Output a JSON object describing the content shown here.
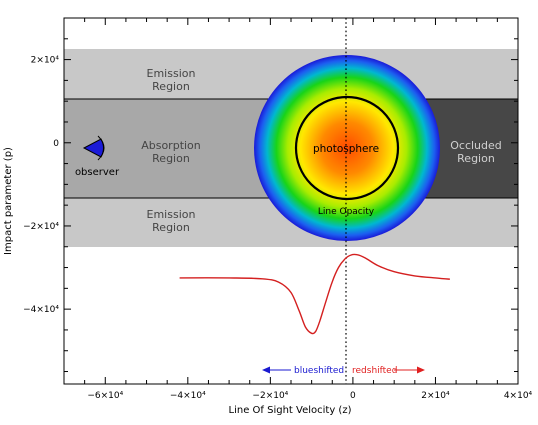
{
  "axes": {
    "xlabel": "Line Of Sight Velocity (z)",
    "ylabel": "Impact parameter (p)",
    "xlim": [
      -70000,
      40000
    ],
    "ylim": [
      -58000,
      30000
    ],
    "xticks": [
      {
        "value": -60000,
        "label": "−6×10⁴"
      },
      {
        "value": -40000,
        "label": "−4×10⁴"
      },
      {
        "value": -20000,
        "label": "−2×10⁴"
      },
      {
        "value": 0,
        "label": "0"
      },
      {
        "value": 20000,
        "label": "2×10⁴"
      },
      {
        "value": 40000,
        "label": "4×10⁴"
      }
    ],
    "yticks": [
      {
        "value": 20000,
        "label": "2×10⁴"
      },
      {
        "value": 0,
        "label": "0"
      },
      {
        "value": -20000,
        "label": "−2×10⁴"
      },
      {
        "value": -40000,
        "label": "−4×10⁴"
      }
    ]
  },
  "regions": {
    "emission_top": {
      "label_line1": "Emission",
      "label_line2": "Region",
      "p_range": [
        11500,
        23000
      ],
      "color": "#c8c8c8"
    },
    "absorption": {
      "label_line1": "Absorption",
      "label_line2": "Region",
      "p_range": [
        -11500,
        11500
      ],
      "color": "#a8a8a8"
    },
    "emission_bottom": {
      "label_line1": "Emission",
      "label_line2": "Region",
      "p_range": [
        -23000,
        -11500
      ],
      "color": "#c8c8c8"
    },
    "occluded": {
      "label_line1": "Occluded",
      "label_line2": "Region",
      "color": "#474747"
    }
  },
  "star": {
    "photosphere_label": "photosphere",
    "line_opacity_label": "Line Opacity",
    "outer_radius": 21000,
    "photosphere_radius": 11500
  },
  "observer": {
    "label": "observer",
    "color": "#1b1bd8"
  },
  "direction": {
    "blueshift_label": "blueshifted",
    "redshift_label": "redshifted",
    "blue_color": "#1a1ad0",
    "red_color": "#e02020"
  },
  "profile": {
    "color": "#d42020",
    "z": [
      -42000,
      -30000,
      -22000,
      -18000,
      -15000,
      -13000,
      -11500,
      -10000,
      -9000,
      -8000,
      -6500,
      -5000,
      -3500,
      -2000,
      -500,
      1000,
      3000,
      6000,
      10000,
      15000,
      20000,
      23500
    ],
    "y": [
      -32500,
      -32500,
      -32700,
      -33500,
      -36000,
      -40500,
      -44300,
      -45800,
      -45300,
      -42800,
      -38000,
      -33400,
      -30000,
      -28000,
      -27000,
      -26900,
      -27700,
      -29500,
      -31000,
      -32000,
      -32500,
      -32800
    ]
  }
}
